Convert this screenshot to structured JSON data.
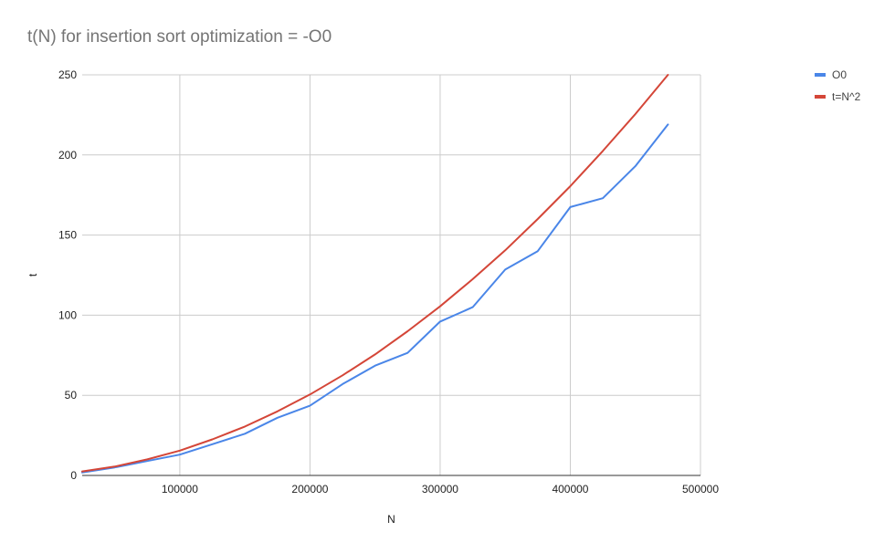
{
  "chart_data": {
    "type": "line",
    "title": "t(N) for insertion sort optimization = -O0",
    "xlabel": "N",
    "ylabel": "t",
    "xlim": [
      25000,
      500000
    ],
    "ylim": [
      0,
      250
    ],
    "x_ticks": [
      100000,
      200000,
      300000,
      400000,
      500000
    ],
    "y_ticks": [
      0,
      50,
      100,
      150,
      200,
      250
    ],
    "grid": true,
    "legend_position": "right",
    "x": [
      25000,
      50000,
      75000,
      100000,
      125000,
      150000,
      175000,
      200000,
      225000,
      250000,
      275000,
      300000,
      325000,
      350000,
      375000,
      400000,
      425000,
      450000,
      475000
    ],
    "series": [
      {
        "name": "O0",
        "color": "#4a86e8",
        "values": [
          1.8,
          5.0,
          9.0,
          13.0,
          19.5,
          26.0,
          36.0,
          43.5,
          57.0,
          68.5,
          76.5,
          96.0,
          105.0,
          128.5,
          140.0,
          167.5,
          173.0,
          193.0,
          219.0
        ]
      },
      {
        "name": "t=N^2",
        "color": "#d44638",
        "values": [
          2.5,
          5.5,
          10.0,
          15.5,
          22.5,
          30.5,
          40.0,
          50.5,
          62.5,
          75.5,
          90.0,
          105.5,
          122.5,
          140.5,
          160.0,
          180.5,
          202.5,
          225.5,
          250.0
        ]
      }
    ]
  }
}
